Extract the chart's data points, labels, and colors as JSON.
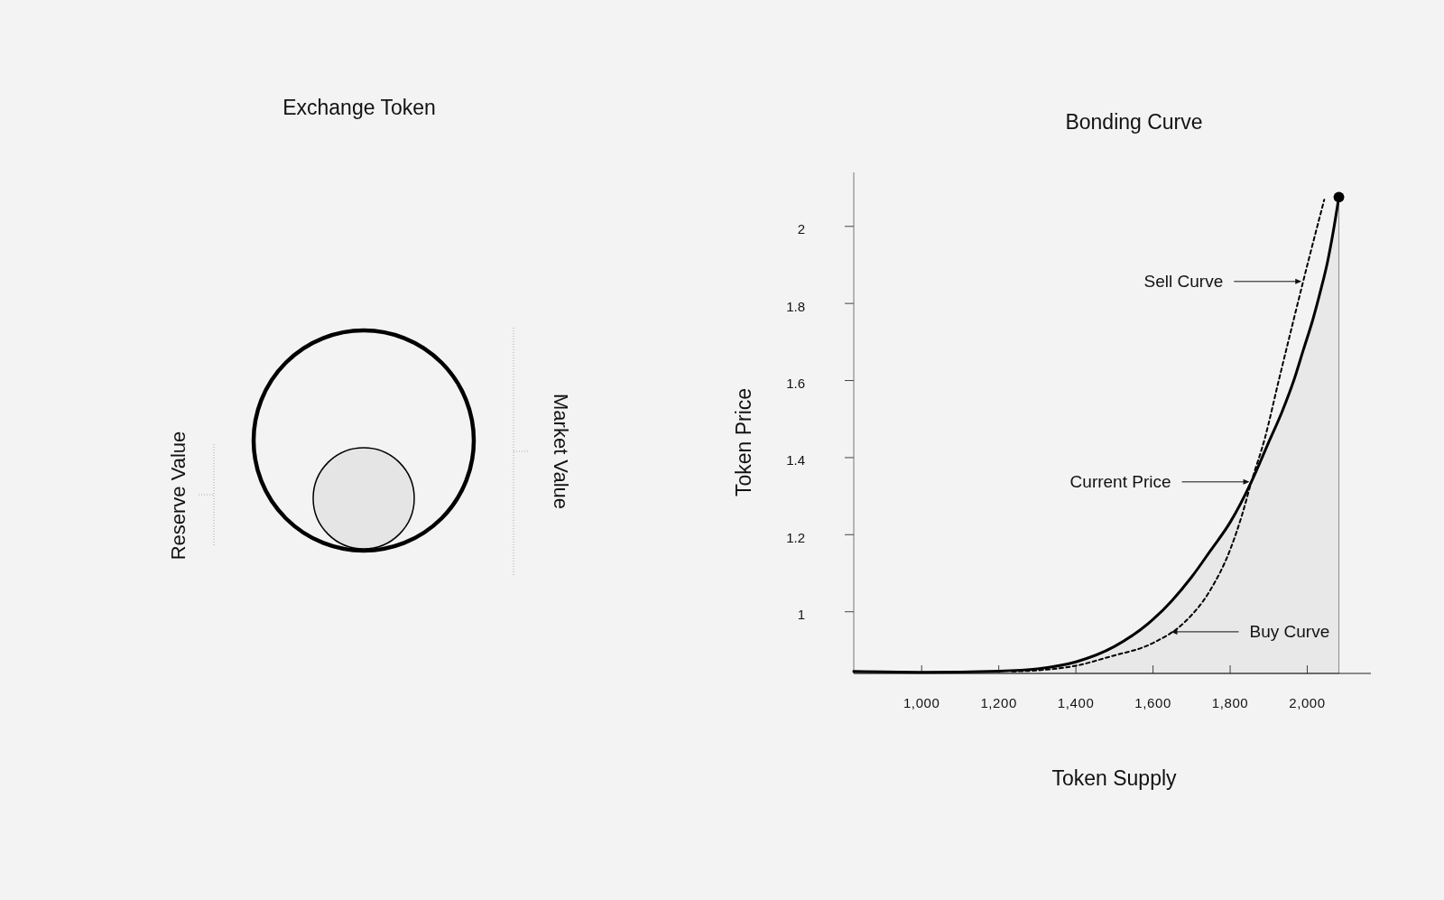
{
  "chart_data": [
    {
      "type": "other",
      "title": "Exchange Token",
      "annotations": [
        "Reserve Value",
        "Market Value"
      ]
    },
    {
      "type": "line",
      "title": "Bonding Curve",
      "xlabel": "Token Supply",
      "ylabel": "Token Price",
      "xlim": [
        824,
        2165
      ],
      "ylim": [
        0.84,
        2.14
      ],
      "xticks": [
        {
          "value": 1000,
          "label": "1,000"
        },
        {
          "value": 1200,
          "label": "1,200"
        },
        {
          "value": 1400,
          "label": "1,400"
        },
        {
          "value": 1600,
          "label": "1,600"
        },
        {
          "value": 1800,
          "label": "1,800"
        },
        {
          "value": 2000,
          "label": "2,000"
        }
      ],
      "yticks": [
        1,
        1.2,
        1.4,
        1.6,
        1.8,
        2
      ],
      "series": [
        {
          "type": "area",
          "color": "#000000",
          "line_style": "solid",
          "x": [
            824,
            1000,
            1200,
            1300,
            1400,
            1500,
            1600,
            1650,
            1700,
            1750,
            1800,
            1855,
            1900,
            1935,
            1965,
            1990,
            2015,
            2035,
            2053,
            2068,
            2082
          ],
          "values": [
            0.845,
            0.843,
            0.846,
            0.852,
            0.87,
            0.91,
            0.98,
            1.03,
            1.09,
            1.16,
            1.232,
            1.337,
            1.44,
            1.52,
            1.6,
            1.68,
            1.76,
            1.835,
            1.91,
            1.99,
            2.076
          ]
        },
        {
          "type": "line",
          "color": "#000000",
          "line_style": "dashed",
          "x": [
            1235,
            1300,
            1400,
            1490,
            1600,
            1683,
            1746,
            1800,
            1832,
            1855,
            1890,
            1926,
            1964,
            2003,
            2044
          ],
          "values": [
            0.845,
            0.848,
            0.86,
            0.884,
            0.919,
            0.974,
            1.052,
            1.161,
            1.255,
            1.337,
            1.45,
            1.6,
            1.755,
            1.911,
            2.069
          ]
        },
        {
          "type": "scatter",
          "color": "#000000",
          "marker": "circle",
          "x": [
            2082
          ],
          "values": [
            2.076
          ]
        }
      ],
      "annotations": [
        {
          "text": "Sell Curve",
          "x": 1990,
          "y": 1.857
        },
        {
          "text": "Current Price",
          "x": 1855,
          "y": 1.337
        },
        {
          "text": "Buy Curve",
          "x": 1642,
          "y": 0.948
        }
      ]
    }
  ]
}
